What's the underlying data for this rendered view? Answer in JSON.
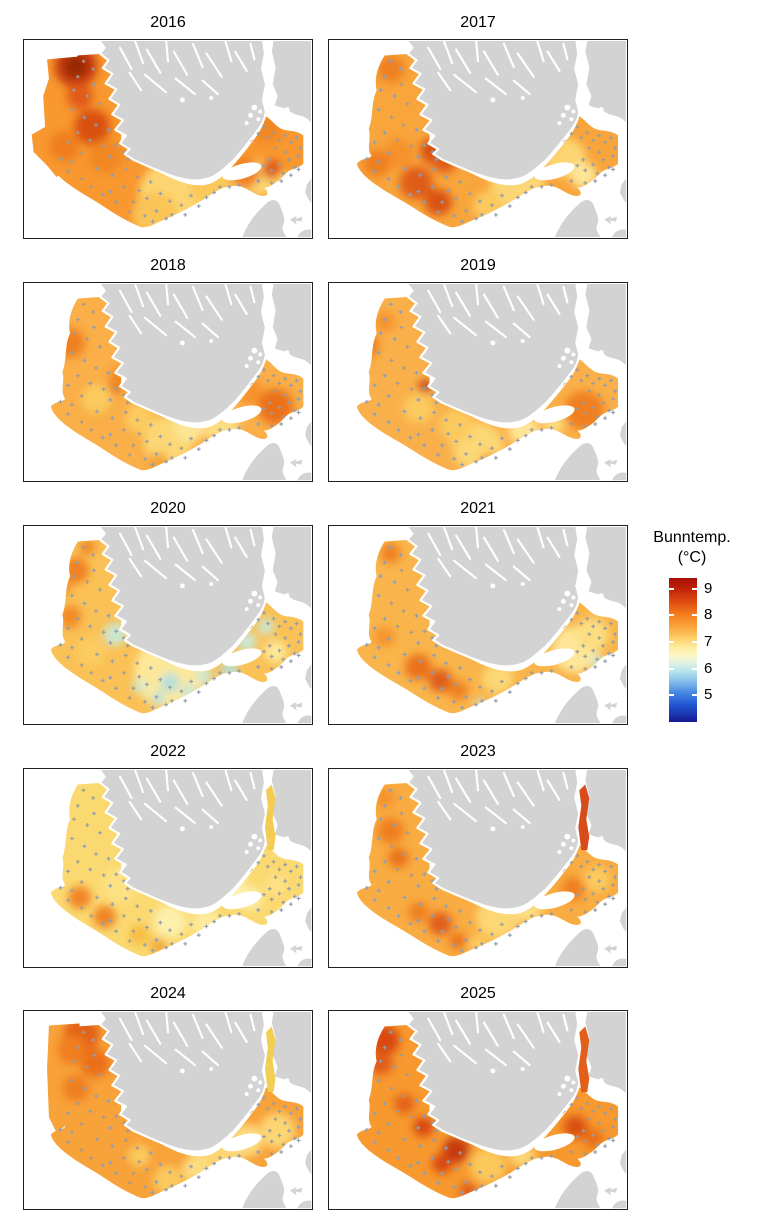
{
  "figure": {
    "description": "Faceted interpolated bottom-temperature maps of the Skagerrak and southern Norway coast, one map per year",
    "years_shown": [
      "2016",
      "2017",
      "2018",
      "2019",
      "2020",
      "2021",
      "2022",
      "2023",
      "2024",
      "2025"
    ]
  },
  "legend": {
    "title_line1": "Bunntemp.",
    "title_line2": "(°C)",
    "ticks": [
      "9",
      "8",
      "7",
      "6",
      "5"
    ],
    "tick_values": [
      9,
      8,
      7,
      6,
      5
    ],
    "domain_top": 9.4,
    "domain_bottom": 4.0,
    "stops": [
      {
        "c": "#a50f08",
        "p": 0
      },
      {
        "c": "#c22408",
        "p": 8
      },
      {
        "c": "#e04f12",
        "p": 17
      },
      {
        "c": "#f5821f",
        "p": 26
      },
      {
        "c": "#fba43e",
        "p": 34
      },
      {
        "c": "#fdd06a",
        "p": 42
      },
      {
        "c": "#fdeb9e",
        "p": 48
      },
      {
        "c": "#fdf8c8",
        "p": 54
      },
      {
        "c": "#dff2e4",
        "p": 59
      },
      {
        "c": "#b5e4ec",
        "p": 65
      },
      {
        "c": "#84bdec",
        "p": 72
      },
      {
        "c": "#4486e2",
        "p": 80
      },
      {
        "c": "#2156d2",
        "p": 88
      },
      {
        "c": "#141b93",
        "p": 100
      }
    ]
  },
  "map_colors": {
    "land": "#d3d3d3",
    "sea_no_data": "#ffffff",
    "station_marker": "#939dab",
    "panel_border": "#1f1f1f"
  },
  "stations": [
    [
      62,
      22
    ],
    [
      72,
      30
    ],
    [
      56,
      38
    ],
    [
      73,
      46
    ],
    [
      52,
      52
    ],
    [
      66,
      58
    ],
    [
      79,
      66
    ],
    [
      50,
      72
    ],
    [
      63,
      80
    ],
    [
      75,
      88
    ],
    [
      88,
      93
    ],
    [
      56,
      96
    ],
    [
      69,
      104
    ],
    [
      83,
      110
    ],
    [
      96,
      109
    ],
    [
      46,
      106
    ],
    [
      104,
      116
    ],
    [
      60,
      117
    ],
    [
      90,
      121
    ],
    [
      38,
      123
    ],
    [
      50,
      126
    ],
    [
      108,
      124
    ],
    [
      76,
      133
    ],
    [
      92,
      140
    ],
    [
      106,
      134
    ],
    [
      118,
      142
    ],
    [
      104,
      152
    ],
    [
      90,
      157
    ],
    [
      120,
      156
    ],
    [
      132,
      147
    ],
    [
      128,
      164
    ],
    [
      114,
      168
    ],
    [
      142,
      159
    ],
    [
      152,
      167
    ],
    [
      138,
      177
    ],
    [
      154,
      181
    ],
    [
      126,
      182
    ],
    [
      164,
      171
    ],
    [
      174,
      161
    ],
    [
      168,
      181
    ],
    [
      182,
      172
    ],
    [
      190,
      163
    ],
    [
      198,
      158
    ],
    [
      204,
      152
    ],
    [
      214,
      152
    ],
    [
      224,
      150
    ],
    [
      148,
      185
    ],
    [
      134,
      188
    ],
    [
      110,
      178
    ],
    [
      96,
      168
    ],
    [
      82,
      160
    ],
    [
      70,
      152
    ],
    [
      60,
      144
    ],
    [
      46,
      136
    ],
    [
      218,
      120
    ],
    [
      228,
      112
    ],
    [
      236,
      104
    ],
    [
      244,
      97
    ],
    [
      250,
      90
    ],
    [
      254,
      101
    ],
    [
      260,
      96
    ],
    [
      266,
      104
    ],
    [
      272,
      99
    ],
    [
      278,
      106
    ],
    [
      284,
      101
    ],
    [
      288,
      112
    ],
    [
      272,
      116
    ],
    [
      262,
      112
    ],
    [
      256,
      124
    ],
    [
      266,
      129
    ],
    [
      276,
      124
    ],
    [
      286,
      120
    ],
    [
      282,
      132
    ],
    [
      270,
      138
    ],
    [
      258,
      135
    ],
    [
      250,
      130
    ],
    [
      244,
      146
    ],
    [
      258,
      148
    ],
    [
      268,
      146
    ],
    [
      278,
      140
    ],
    [
      286,
      134
    ]
  ],
  "facets": [
    {
      "year": "2016",
      "shape": "block",
      "base": "#f8982f",
      "fjord": null,
      "spots": [
        [
          54,
          27,
          13,
          "#bf3007"
        ],
        [
          54,
          27,
          7,
          "#8a1a03"
        ],
        [
          71,
          90,
          11,
          "#d64a10"
        ],
        [
          58,
          58,
          8,
          "#dd5413"
        ],
        [
          42,
          110,
          9,
          "#ee7a1c"
        ],
        [
          85,
          120,
          10,
          "#f08523"
        ],
        [
          160,
          163,
          24,
          "#fcdc7a"
        ],
        [
          137,
          181,
          14,
          "#fbc95c"
        ],
        [
          200,
          152,
          16,
          "#fbce62"
        ],
        [
          244,
          143,
          11,
          "#fcdc7a"
        ],
        [
          266,
          151,
          9,
          "#fcd96e"
        ],
        [
          230,
          138,
          9,
          "#ee7a1c"
        ],
        [
          252,
          92,
          9,
          "#f08523"
        ],
        [
          258,
          134,
          6,
          "#dd5413"
        ]
      ]
    },
    {
      "year": "2017",
      "shape": "arm",
      "base": "#f8a53c",
      "fjord": null,
      "spots": [
        [
          62,
          30,
          8,
          "#ee7a1c"
        ],
        [
          105,
          115,
          8,
          "#d64a10"
        ],
        [
          116,
          126,
          7,
          "#dd5413"
        ],
        [
          88,
          148,
          10,
          "#dd5413"
        ],
        [
          110,
          168,
          8,
          "#d64a10"
        ],
        [
          134,
          95,
          6,
          "#f08523"
        ],
        [
          70,
          118,
          9,
          "#f58f2a"
        ],
        [
          190,
          150,
          16,
          "#fcdc7a"
        ],
        [
          238,
          122,
          12,
          "#fcdc7a"
        ],
        [
          256,
          140,
          8,
          "#fdeca0"
        ],
        [
          222,
          108,
          7,
          "#fbc95c"
        ],
        [
          160,
          172,
          9,
          "#fbce62"
        ],
        [
          48,
          128,
          8,
          "#ee7a1c"
        ]
      ]
    },
    {
      "year": "2018",
      "shape": "arm",
      "base": "#faaf48",
      "fjord": null,
      "spots": [
        [
          48,
          62,
          9,
          "#ee7a1c"
        ],
        [
          96,
          107,
          4,
          "#c03108"
        ],
        [
          100,
          100,
          7,
          "#f08523"
        ],
        [
          262,
          128,
          11,
          "#e86a18"
        ],
        [
          150,
          163,
          15,
          "#fcdc7a"
        ],
        [
          205,
          148,
          11,
          "#fce287"
        ],
        [
          120,
          140,
          9,
          "#fbce62"
        ],
        [
          172,
          150,
          9,
          "#fdeca0"
        ],
        [
          75,
          120,
          9,
          "#fbce62"
        ],
        [
          235,
          112,
          8,
          "#f58f2a"
        ],
        [
          140,
          186,
          6,
          "#f2a133"
        ]
      ]
    },
    {
      "year": "2019",
      "shape": "arm",
      "base": "#fab04a",
      "fjord": null,
      "spots": [
        [
          35,
          65,
          9,
          "#ee7a1c"
        ],
        [
          56,
          40,
          6,
          "#f58f2a"
        ],
        [
          97,
          107,
          4,
          "#c03108"
        ],
        [
          257,
          132,
          12,
          "#ee7a1c"
        ],
        [
          150,
          170,
          15,
          "#fcdc7a"
        ],
        [
          128,
          148,
          10,
          "#fbce62"
        ],
        [
          196,
          152,
          9,
          "#fdeca0"
        ],
        [
          90,
          130,
          9,
          "#fbce62"
        ],
        [
          226,
          146,
          6,
          "#fce287"
        ],
        [
          162,
          186,
          6,
          "#f2a133"
        ]
      ]
    },
    {
      "year": "2020",
      "shape": "arm",
      "base": "#fac156",
      "fjord": null,
      "spots": [
        [
          54,
          46,
          8,
          "#ee7a1c"
        ],
        [
          48,
          94,
          7,
          "#f08523"
        ],
        [
          40,
          62,
          6,
          "#f58f2a"
        ],
        [
          152,
          152,
          22,
          "#fdeca0"
        ],
        [
          95,
          112,
          7,
          "#c5ece2"
        ],
        [
          152,
          162,
          6,
          "#aee3ea"
        ],
        [
          172,
          172,
          5,
          "#c5ece2"
        ],
        [
          188,
          155,
          5,
          "#c5ece2"
        ],
        [
          214,
          148,
          5,
          "#aee3ea"
        ],
        [
          232,
          120,
          6,
          "#c5ece2"
        ],
        [
          252,
          104,
          5,
          "#c5ece2"
        ],
        [
          140,
          178,
          4,
          "#aee3ea"
        ],
        [
          120,
          166,
          4,
          "#c5ece2"
        ],
        [
          262,
          130,
          7,
          "#fdeca0"
        ],
        [
          70,
          130,
          9,
          "#fbce62"
        ],
        [
          66,
          22,
          5,
          "#f08523"
        ]
      ]
    },
    {
      "year": "2021",
      "shape": "arm",
      "base": "#f9b54b",
      "fjord": null,
      "spots": [
        [
          210,
          106,
          10,
          "#dd5413"
        ],
        [
          226,
          90,
          7,
          "#d64a10"
        ],
        [
          90,
          146,
          8,
          "#e86a18"
        ],
        [
          112,
          160,
          7,
          "#dd5413"
        ],
        [
          130,
          170,
          6,
          "#ee7a1c"
        ],
        [
          56,
          115,
          6,
          "#f58f2a"
        ],
        [
          248,
          128,
          14,
          "#fdeca0"
        ],
        [
          265,
          112,
          10,
          "#fce287"
        ],
        [
          270,
          140,
          4,
          "#c5ece2"
        ],
        [
          152,
          184,
          3,
          "#c5ece2"
        ],
        [
          170,
          158,
          9,
          "#fcdc7a"
        ],
        [
          62,
          28,
          6,
          "#ee7a1c"
        ],
        [
          194,
          120,
          6,
          "#e86a18"
        ]
      ]
    },
    {
      "year": "2022",
      "shape": "arm",
      "base": "#fbd971",
      "fjord": "#f2c94a",
      "spots": [
        [
          58,
          133,
          7,
          "#ee7a1c"
        ],
        [
          84,
          153,
          7,
          "#ee7a1c"
        ],
        [
          140,
          184,
          5,
          "#f2a133"
        ],
        [
          152,
          158,
          10,
          "#fdf2b2"
        ],
        [
          215,
          120,
          9,
          "#fdf2b2"
        ],
        [
          236,
          134,
          7,
          "#fdf2b2"
        ],
        [
          100,
          120,
          11,
          "#fce287"
        ],
        [
          190,
          160,
          9,
          "#fdeca0"
        ],
        [
          262,
          120,
          7,
          "#fce287"
        ],
        [
          120,
          172,
          6,
          "#f6b83e"
        ]
      ]
    },
    {
      "year": "2023",
      "shape": "arm",
      "base": "#f9ac42",
      "fjord": "#d6410f",
      "spots": [
        [
          62,
          64,
          8,
          "#ee7a1c"
        ],
        [
          70,
          92,
          6,
          "#e86a18"
        ],
        [
          112,
          160,
          7,
          "#dd5413"
        ],
        [
          90,
          148,
          6,
          "#ee7a1c"
        ],
        [
          224,
          94,
          8,
          "#e86a18"
        ],
        [
          246,
          124,
          7,
          "#ee7a1c"
        ],
        [
          170,
          154,
          13,
          "#fcdc7a"
        ],
        [
          200,
          144,
          9,
          "#fce287"
        ],
        [
          270,
          114,
          8,
          "#fbce62"
        ],
        [
          150,
          182,
          6,
          "#fbce62"
        ],
        [
          56,
          30,
          6,
          "#f58f2a"
        ],
        [
          130,
          178,
          5,
          "#e86a18"
        ]
      ]
    },
    {
      "year": "2024",
      "shape": "wide",
      "base": "#f8a23a",
      "fjord": "#f0cc4c",
      "spots": [
        [
          60,
          24,
          11,
          "#e05c12"
        ],
        [
          74,
          54,
          9,
          "#e86a18"
        ],
        [
          54,
          80,
          8,
          "#ee7a1c"
        ],
        [
          50,
          40,
          9,
          "#ee7a1c"
        ],
        [
          200,
          154,
          16,
          "#fcdc7a"
        ],
        [
          232,
          134,
          10,
          "#fce287"
        ],
        [
          264,
          124,
          11,
          "#fcdc7a"
        ],
        [
          150,
          175,
          9,
          "#fbce62"
        ],
        [
          120,
          150,
          7,
          "#fbce62"
        ],
        [
          178,
          164,
          8,
          "#fce287"
        ]
      ]
    },
    {
      "year": "2025",
      "shape": "arm",
      "base": "#f7992e",
      "fjord": "#e0560f",
      "spots": [
        [
          56,
          30,
          9,
          "#d6410f"
        ],
        [
          52,
          54,
          7,
          "#dd5413"
        ],
        [
          95,
          120,
          6,
          "#d6410f"
        ],
        [
          128,
          144,
          8,
          "#c03108"
        ],
        [
          114,
          158,
          6,
          "#d6410f"
        ],
        [
          224,
          90,
          8,
          "#dd5413"
        ],
        [
          248,
          120,
          7,
          "#d64a10"
        ],
        [
          266,
          132,
          6,
          "#e86a18"
        ],
        [
          160,
          160,
          11,
          "#fbce62"
        ],
        [
          195,
          150,
          8,
          "#fcdc7a"
        ],
        [
          140,
          186,
          5,
          "#dd5413"
        ],
        [
          76,
          96,
          6,
          "#e05c12"
        ]
      ]
    }
  ],
  "chart_data": {
    "type": "heatmap",
    "subtype": "faceted geographic interpolation maps (small multiples)",
    "region": "Skagerrak / southern Norway coastal waters",
    "variable": "Bunntemp. (°C) (bottom temperature)",
    "facets": [
      "2016",
      "2017",
      "2018",
      "2019",
      "2020",
      "2021",
      "2022",
      "2023",
      "2024",
      "2025"
    ],
    "grid": {
      "rows": 5,
      "cols": 2
    },
    "colorbar": {
      "ticks": [
        9,
        8,
        7,
        6,
        5
      ],
      "top_value": 9.4,
      "bottom_value": 4.0,
      "palette": "dark red - orange - yellow - pale cyan - blue - dark blue",
      "position": "right, vertically centered"
    },
    "approx_surface_temp_range_C_by_year": {
      "2016": [
        7.5,
        9.2
      ],
      "2017": [
        7.3,
        8.9
      ],
      "2018": [
        7.2,
        8.6
      ],
      "2019": [
        7.2,
        8.6
      ],
      "2020": [
        6.2,
        8.4
      ],
      "2021": [
        6.4,
        8.8
      ],
      "2022": [
        7.0,
        8.3
      ],
      "2023": [
        7.2,
        8.9
      ],
      "2024": [
        7.1,
        8.8
      ],
      "2025": [
        7.3,
        9.1
      ]
    },
    "stations_per_map_approx": 75,
    "notes": "Gray = land (Norway top, Sweden right, Denmark bottom-right); white = sea without data; '+' crosses = sampling stations; 2016 has the largest western survey block; 2020 shows cool (cyan) patches along the coast; 2022 is palest (coolest); 2016, 2024 and 2025 are the most orange (warmest)."
  }
}
